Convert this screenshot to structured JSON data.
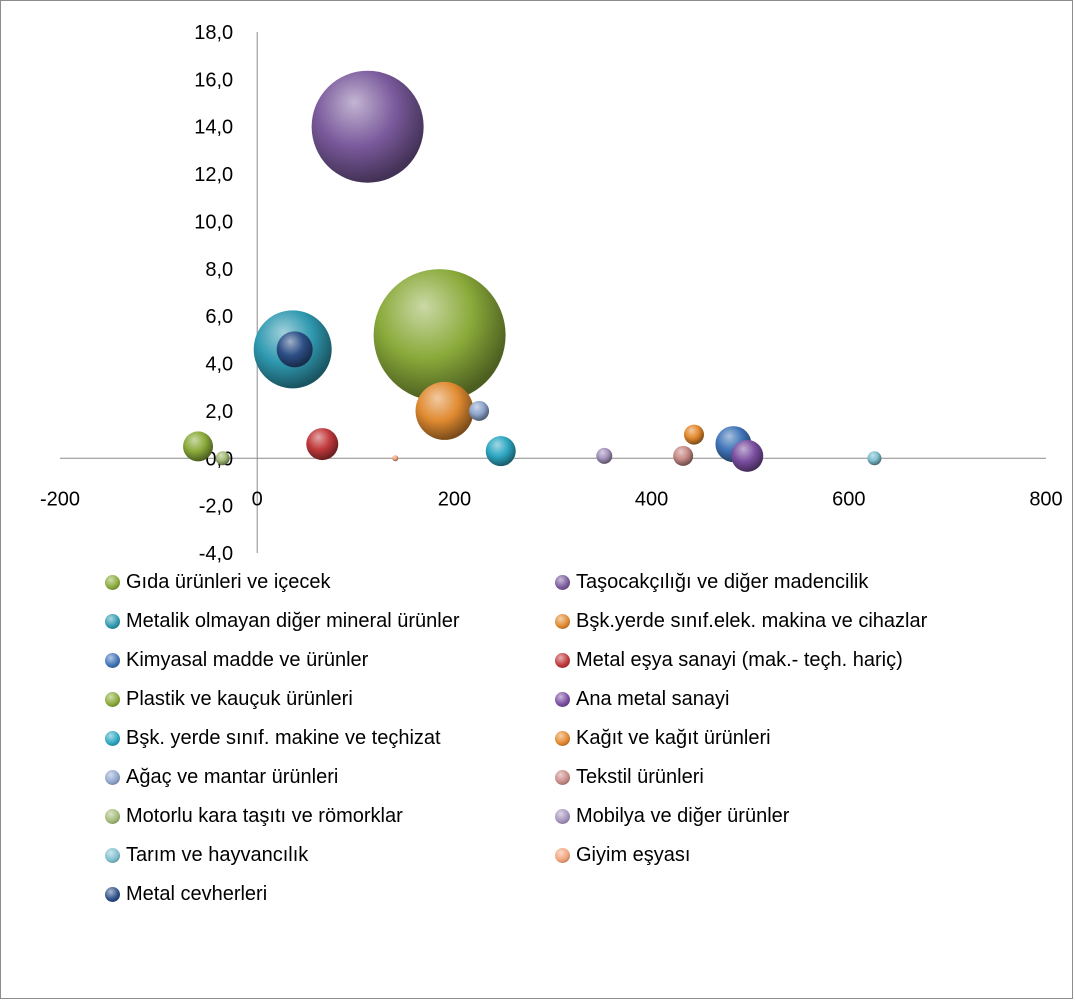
{
  "chart_data": {
    "type": "bubble",
    "title": "",
    "xlabel": "",
    "ylabel": "",
    "xlim": [
      -200,
      800
    ],
    "ylim": [
      -4,
      18
    ],
    "x_ticks": [
      "-200",
      "0",
      "200",
      "400",
      "600",
      "800"
    ],
    "y_ticks": [
      "18,0",
      "16,0",
      "14,0",
      "12,0",
      "10,0",
      "8,0",
      "6,0",
      "4,0",
      "2,0",
      "0,0",
      "-2,0",
      "-4,0"
    ],
    "legend_position": "bottom",
    "series": [
      {
        "name": "Gıda ürünleri ve içecek",
        "color": "#8aaa3a",
        "x": 185,
        "y": 5.2,
        "r": 66
      },
      {
        "name": "Taşocakçılığı ve diğer madencilik",
        "color": "#7a5a9c",
        "x": 112,
        "y": 14.0,
        "r": 56
      },
      {
        "name": "Metalik olmayan diğer mineral ürünler",
        "color": "#2f99b0",
        "x": 36,
        "y": 4.6,
        "r": 39
      },
      {
        "name": "Bşk.yerde sınıf.elek. makina ve cihazlar",
        "color": "#e08a30",
        "x": 190,
        "y": 2.0,
        "r": 29
      },
      {
        "name": "Kimyasal madde ve ürünler",
        "color": "#3f74b8",
        "x": 483,
        "y": 0.6,
        "r": 18
      },
      {
        "name": "Metal eşya sanayi (mak.- teçh. hariç)",
        "color": "#c0393b",
        "x": 66,
        "y": 0.6,
        "r": 16
      },
      {
        "name": "Plastik ve kauçuk ürünleri",
        "color": "#8aaa3a",
        "x": -60,
        "y": 0.5,
        "r": 15
      },
      {
        "name": "Ana metal sanayi",
        "color": "#7a4ea0",
        "x": 497,
        "y": 0.1,
        "r": 16
      },
      {
        "name": "Bşk. yerde sınıf. makine ve teçhizat",
        "color": "#2ea7c2",
        "x": 247,
        "y": 0.3,
        "r": 15
      },
      {
        "name": "Kağıt ve kağıt ürünleri",
        "color": "#e3892e",
        "x": 443,
        "y": 1.0,
        "r": 10
      },
      {
        "name": "Ağaç ve mantar ürünleri",
        "color": "#8fa6cc",
        "x": 225,
        "y": 2.0,
        "r": 10
      },
      {
        "name": "Tekstil ürünleri",
        "color": "#c78a86",
        "x": 432,
        "y": 0.1,
        "r": 10
      },
      {
        "name": "Motorlu kara taşıtı ve römorklar",
        "color": "#a3bb78",
        "x": -35,
        "y": 0.0,
        "r": 7
      },
      {
        "name": "Mobilya ve diğer ürünler",
        "color": "#a493bd",
        "x": 352,
        "y": 0.1,
        "r": 8
      },
      {
        "name": "Tarım ve hayvancılık",
        "color": "#7fbfcf",
        "x": 626,
        "y": 0.0,
        "r": 7
      },
      {
        "name": "Giyim eşyası",
        "color": "#f0a37a",
        "x": 140,
        "y": 0.0,
        "r": 3
      },
      {
        "name": "Metal cevherleri",
        "color": "#2c4f86",
        "x": 38,
        "y": 4.6,
        "r": 18
      }
    ]
  }
}
